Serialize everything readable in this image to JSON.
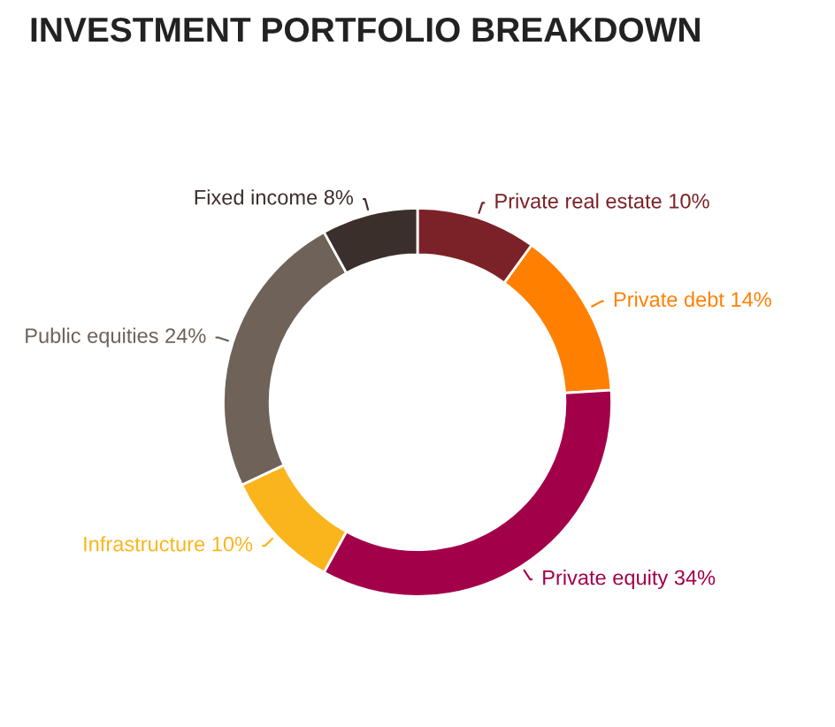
{
  "chart_data": {
    "type": "donut",
    "title": "INVESTMENT PORTFOLIO BREAKDOWN",
    "categories": [
      "Private real estate",
      "Private debt",
      "Private equity",
      "Infrastructure",
      "Public equities",
      "Fixed income"
    ],
    "values": [
      10,
      14,
      34,
      10,
      24,
      8
    ],
    "value_labels": [
      "10%",
      "14%",
      "34%",
      "10%",
      "24%",
      "8%"
    ],
    "colors": [
      "#7b2228",
      "#ff8000",
      "#a3004a",
      "#fbb51c",
      "#6e6259",
      "#3b2f2c"
    ],
    "legend": false
  }
}
